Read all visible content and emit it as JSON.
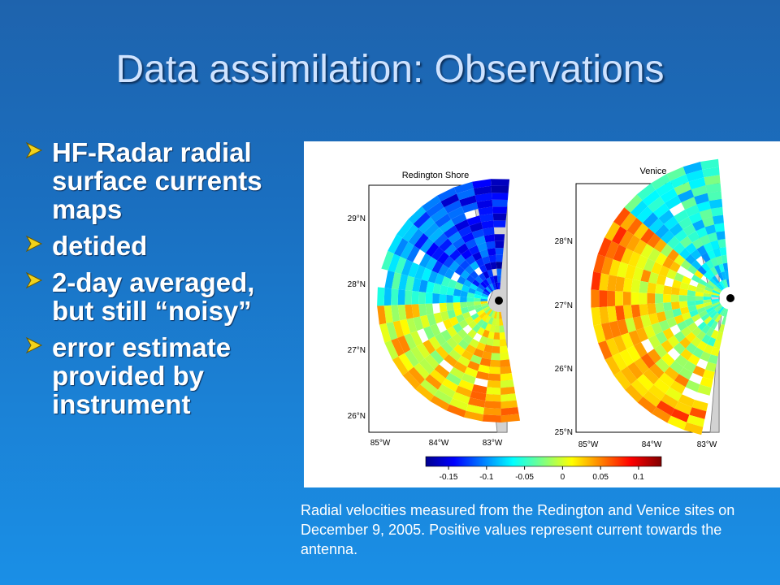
{
  "title": "Data assimilation: Observations",
  "bullets": [
    "HF-Radar radial surface currents maps",
    "detided",
    "2-day averaged, but still “noisy”",
    "error estimate provided by instrument"
  ],
  "figure": {
    "panels": [
      {
        "title": "Redington Shore",
        "lat_labels": [
          "29°N",
          "28°N",
          "27°N",
          "26°N"
        ],
        "lon_labels": [
          "85°W",
          "84°W",
          "83°W"
        ]
      },
      {
        "title": "Venice",
        "lat_labels": [
          "28°N",
          "27°N",
          "26°N",
          "25°N"
        ],
        "lon_labels": [
          "85°W",
          "84°W",
          "83°W"
        ]
      }
    ],
    "colorbar_ticks": [
      "-0.15",
      "-0.1",
      "-0.05",
      "0",
      "0.05",
      "0.1"
    ],
    "colorbar_range": [
      -0.18,
      0.13
    ]
  },
  "caption": "Radial velocities measured from the Redington and Venice sites on December 9, 2005. Positive values represent current towards the antenna.",
  "colors": {
    "title": "#cfe3ff",
    "bullet_arrow": "#f2d21b",
    "land": "#d2d2d2"
  }
}
